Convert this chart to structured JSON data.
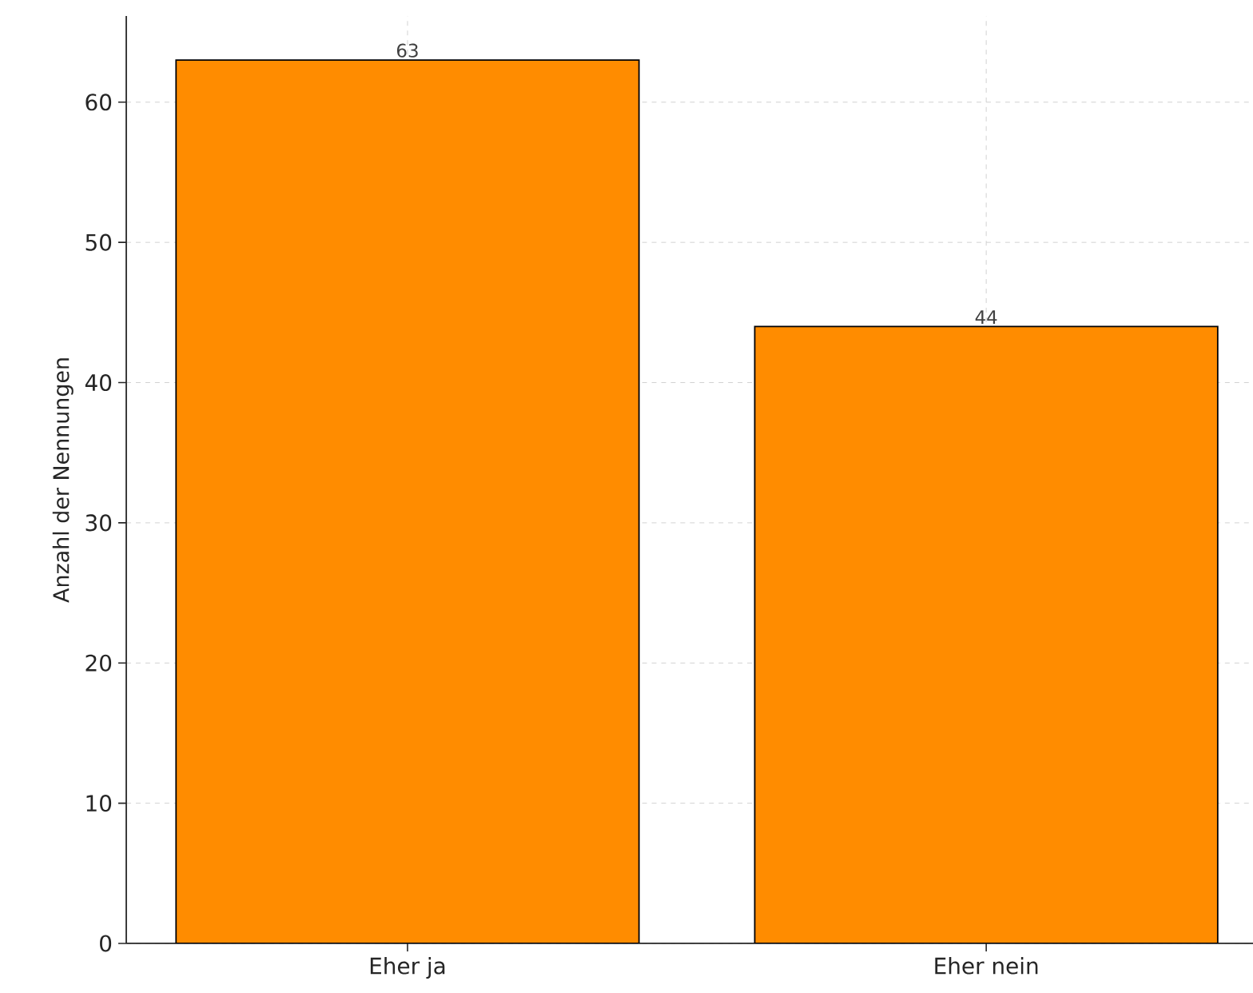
{
  "chart_data": {
    "type": "bar",
    "ylabel": "Anzahl der Nennungen",
    "categories": [
      "Eher ja",
      "Eher nein"
    ],
    "values": [
      63,
      44
    ],
    "color": "#ff8c00",
    "ylim": [
      0,
      66.15
    ],
    "yticks": [
      0,
      10,
      20,
      30,
      40,
      50,
      60
    ],
    "grid": true,
    "data_labels": true
  }
}
